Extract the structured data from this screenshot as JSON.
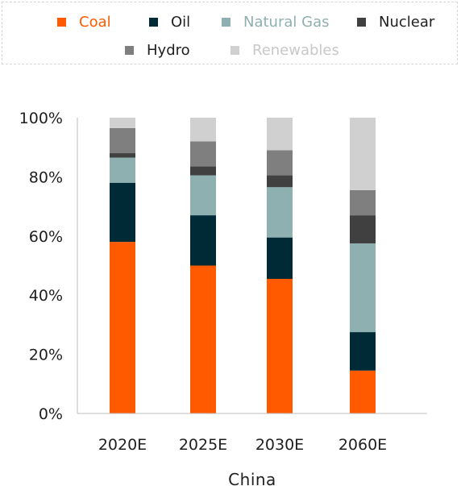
{
  "colors": {
    "coal": "#ff5a00",
    "oil": "#002b36",
    "natural_gas": "#8fb0b0",
    "nuclear": "#404040",
    "hydro": "#7f7f7f",
    "renewables": "#d0d0d0",
    "axis": "#bdbdbd",
    "text": "#1f1f1f"
  },
  "legend": [
    {
      "label": "Coal",
      "color": "#ff5a00",
      "text_color": "#ff5a00"
    },
    {
      "label": "Oil",
      "color": "#002b36",
      "text_color": "#1f1f1f"
    },
    {
      "label": "Natural Gas",
      "color": "#8fb0b0",
      "text_color": "#8fb0b0"
    },
    {
      "label": "Nuclear",
      "color": "#404040",
      "text_color": "#1f1f1f"
    },
    {
      "label": "Hydro",
      "color": "#7f7f7f",
      "text_color": "#1f1f1f"
    },
    {
      "label": "Renewables",
      "color": "#d0d0d0",
      "text_color": "#c8c8c8"
    }
  ],
  "chart_data": {
    "type": "bar",
    "stacked": true,
    "categories": [
      "2020E",
      "2025E",
      "2030E",
      "2060E"
    ],
    "series": [
      {
        "name": "Coal",
        "values": [
          58,
          50,
          45.5,
          14.5
        ]
      },
      {
        "name": "Oil",
        "values": [
          20,
          17,
          14,
          13
        ]
      },
      {
        "name": "Natural Gas",
        "values": [
          8.5,
          13.5,
          17,
          30
        ]
      },
      {
        "name": "Nuclear",
        "values": [
          1.5,
          3,
          4,
          9.5
        ]
      },
      {
        "name": "Hydro",
        "values": [
          8.5,
          8.5,
          8.5,
          8.5
        ]
      },
      {
        "name": "Renewables",
        "values": [
          3.5,
          8,
          11,
          24.5
        ]
      }
    ],
    "xlabel": "China",
    "ylabel": "",
    "ylim": [
      0,
      100
    ],
    "yticks": [
      "0%",
      "20%",
      "40%",
      "60%",
      "80%",
      "100%"
    ],
    "grid": false,
    "legend_position": "top"
  }
}
